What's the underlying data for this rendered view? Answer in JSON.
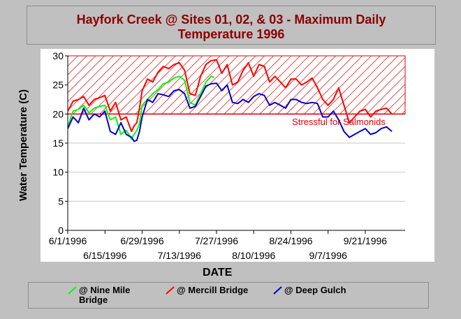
{
  "chart_data": {
    "type": "line",
    "title_lines": [
      "Hayfork Creek @ Sites 01, 02, & 03 - Maximum Daily",
      "Temperature 1996"
    ],
    "xlabel": "DATE",
    "ylabel": "Water Temperature (C)",
    "ylim": [
      0,
      30
    ],
    "yticks": [
      0,
      5,
      10,
      15,
      20,
      25,
      30
    ],
    "x_tick_labels": [
      "6/1/1996",
      "6/15/1996",
      "6/29/1996",
      "7/13/1996",
      "7/27/1996",
      "8/10/1996",
      "8/24/1996",
      "9/7/1996",
      "9/21/1996"
    ],
    "xlim": [
      "6/1/1996",
      "10/6/1996"
    ],
    "threshold": {
      "value": 20,
      "label": "Stressful for Salmonids",
      "band": [
        20,
        30
      ],
      "color": "#e00000"
    },
    "grid": true,
    "legend_position": "bottom",
    "series": [
      {
        "name": "@ Nine Mile Bridge",
        "color": "#00ff00",
        "x": [
          "6/1/1996",
          "6/3/1996",
          "6/5/1996",
          "6/7/1996",
          "6/9/1996",
          "6/11/1996",
          "6/13/1996",
          "6/15/1996",
          "6/17/1996",
          "6/19/1996",
          "6/21/1996",
          "6/23/1996",
          "6/25/1996",
          "6/26/1996",
          "6/27/1996",
          "6/28/1996",
          "6/29/1996",
          "7/1/1996",
          "7/3/1996",
          "7/5/1996",
          "7/7/1996",
          "7/9/1996",
          "7/11/1996",
          "7/13/1996",
          "7/15/1996",
          "7/17/1996",
          "7/19/1996",
          "7/21/1996",
          "7/23/1996",
          "7/25/1996",
          "7/26/1996"
        ],
        "y": [
          17.8,
          20.5,
          20.8,
          21.5,
          20.2,
          21.0,
          21.3,
          21.5,
          19.0,
          19.5,
          16.5,
          17.2,
          15.7,
          16.5,
          17.2,
          18.3,
          21.5,
          22.5,
          23.5,
          24.2,
          25.2,
          25.5,
          26.2,
          26.5,
          25.8,
          22.0,
          21.5,
          23.5,
          25.5,
          26.5,
          26.3
        ]
      },
      {
        "name": "@ Mercill Bridge",
        "color": "#ff0000",
        "x": [
          "6/1/1996",
          "6/3/1996",
          "6/5/1996",
          "6/7/1996",
          "6/9/1996",
          "6/11/1996",
          "6/13/1996",
          "6/15/1996",
          "6/17/1996",
          "6/19/1996",
          "6/21/1996",
          "6/23/1996",
          "6/25/1996",
          "6/26/1996",
          "6/27/1996",
          "6/28/1996",
          "6/29/1996",
          "7/1/1996",
          "7/3/1996",
          "7/5/1996",
          "7/7/1996",
          "7/9/1996",
          "7/11/1996",
          "7/13/1996",
          "7/15/1996",
          "7/17/1996",
          "7/19/1996",
          "7/21/1996",
          "7/23/1996",
          "7/25/1996",
          "7/27/1996",
          "7/29/1996",
          "7/31/1996",
          "8/2/1996",
          "8/4/1996",
          "8/6/1996",
          "8/8/1996",
          "8/10/1996",
          "8/12/1996",
          "8/14/1996",
          "8/16/1996",
          "8/18/1996",
          "8/20/1996",
          "8/22/1996",
          "8/24/1996",
          "8/26/1996",
          "8/28/1996",
          "8/30/1996",
          "9/1/1996",
          "9/3/1996",
          "9/5/1996",
          "9/7/1996",
          "9/9/1996",
          "9/11/1996",
          "9/13/1996",
          "9/15/1996",
          "9/17/1996",
          "9/19/1996",
          "9/21/1996",
          "9/23/1996",
          "9/25/1996",
          "9/27/1996",
          "9/29/1996",
          "10/1/1996"
        ],
        "y": [
          20.5,
          22.2,
          22.5,
          23.0,
          21.5,
          22.5,
          22.8,
          23.2,
          20.5,
          22.0,
          19.0,
          19.5,
          17.0,
          18.0,
          18.5,
          21.0,
          24.0,
          26.0,
          25.5,
          27.2,
          28.2,
          27.8,
          28.5,
          28.8,
          27.5,
          23.5,
          23.2,
          26.5,
          28.5,
          29.2,
          29.3,
          27.0,
          28.5,
          25.0,
          25.5,
          27.5,
          28.8,
          26.5,
          28.5,
          28.2,
          25.5,
          26.5,
          25.5,
          24.5,
          26.0,
          26.0,
          25.0,
          25.5,
          26.2,
          24.5,
          22.5,
          21.5,
          22.5,
          24.5,
          21.5,
          18.5,
          19.5,
          20.5,
          20.8,
          19.5,
          20.5,
          20.8,
          21.0,
          20.0
        ]
      },
      {
        "name": "@ Deep Gulch",
        "color": "#0000cc",
        "x": [
          "6/1/1996",
          "6/3/1996",
          "6/5/1996",
          "6/7/1996",
          "6/9/1996",
          "6/11/1996",
          "6/13/1996",
          "6/15/1996",
          "6/17/1996",
          "6/19/1996",
          "6/21/1996",
          "6/23/1996",
          "6/25/1996",
          "6/26/1996",
          "6/27/1996",
          "6/28/1996",
          "6/29/1996",
          "7/1/1996",
          "7/3/1996",
          "7/5/1996",
          "7/7/1996",
          "7/9/1996",
          "7/11/1996",
          "7/13/1996",
          "7/15/1996",
          "7/17/1996",
          "7/19/1996",
          "7/21/1996",
          "7/23/1996",
          "7/25/1996",
          "7/27/1996",
          "7/29/1996",
          "7/31/1996",
          "8/2/1996",
          "8/4/1996",
          "8/6/1996",
          "8/8/1996",
          "8/10/1996",
          "8/12/1996",
          "8/14/1996",
          "8/16/1996",
          "8/18/1996",
          "8/20/1996",
          "8/22/1996",
          "8/24/1996",
          "8/26/1996",
          "8/28/1996",
          "8/30/1996",
          "9/1/1996",
          "9/3/1996",
          "9/5/1996",
          "9/7/1996",
          "9/9/1996",
          "9/11/1996",
          "9/13/1996",
          "9/15/1996",
          "9/17/1996",
          "9/19/1996",
          "9/21/1996",
          "9/23/1996",
          "9/25/1996",
          "9/27/1996",
          "9/29/1996",
          "10/1/1996"
        ],
        "y": [
          17.5,
          19.5,
          18.5,
          21.0,
          19.0,
          20.0,
          19.5,
          20.5,
          17.0,
          16.5,
          18.5,
          16.5,
          16.0,
          15.3,
          15.5,
          17.0,
          19.5,
          22.5,
          22.0,
          23.5,
          23.3,
          23.0,
          24.0,
          24.2,
          23.5,
          21.0,
          21.3,
          23.0,
          24.8,
          25.2,
          25.3,
          24.0,
          25.0,
          22.0,
          21.8,
          22.5,
          22.0,
          23.0,
          23.5,
          23.2,
          21.5,
          22.0,
          21.5,
          21.0,
          22.5,
          22.5,
          22.0,
          21.8,
          22.0,
          21.8,
          19.5,
          19.5,
          20.5,
          19.0,
          17.0,
          16.0,
          16.5,
          17.0,
          17.5,
          16.5,
          16.8,
          17.5,
          17.8,
          17.0
        ]
      }
    ]
  }
}
